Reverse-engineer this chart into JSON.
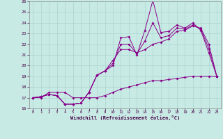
{
  "xlabel": "Windchill (Refroidissement éolien,°C)",
  "background_color": "#c8eae5",
  "grid_color": "#aad4cf",
  "line_color": "#880088",
  "xlim": [
    -0.5,
    23.5
  ],
  "ylim": [
    16,
    26
  ],
  "xticks": [
    0,
    1,
    2,
    3,
    4,
    5,
    6,
    7,
    8,
    9,
    10,
    11,
    12,
    13,
    14,
    15,
    16,
    17,
    18,
    19,
    20,
    21,
    22,
    23
  ],
  "yticks": [
    16,
    17,
    18,
    19,
    20,
    21,
    22,
    23,
    24,
    25,
    26
  ],
  "series1_x": [
    0,
    1,
    2,
    3,
    4,
    5,
    6,
    7,
    8,
    9,
    10,
    11,
    12,
    13,
    14,
    15,
    16,
    17,
    18,
    19,
    20,
    21,
    22,
    23
  ],
  "series1_y": [
    17.0,
    17.1,
    17.3,
    17.2,
    16.4,
    16.4,
    16.5,
    17.5,
    19.1,
    19.5,
    20.0,
    22.6,
    22.7,
    21.0,
    23.3,
    26.1,
    23.1,
    23.2,
    23.8,
    23.5,
    24.0,
    23.3,
    21.2,
    19.0
  ],
  "series2_x": [
    0,
    1,
    2,
    3,
    4,
    5,
    6,
    7,
    8,
    9,
    10,
    11,
    12,
    13,
    14,
    15,
    16,
    17,
    18,
    19,
    20,
    21,
    22,
    23
  ],
  "series2_y": [
    17.0,
    17.1,
    17.3,
    17.2,
    16.4,
    16.4,
    16.5,
    17.5,
    19.1,
    19.5,
    20.5,
    21.5,
    21.5,
    21.2,
    21.5,
    22.0,
    22.2,
    22.5,
    23.2,
    23.3,
    23.7,
    23.5,
    22.0,
    19.0
  ],
  "series3_x": [
    0,
    1,
    2,
    3,
    4,
    5,
    6,
    7,
    8,
    9,
    10,
    11,
    12,
    13,
    14,
    15,
    16,
    17,
    18,
    19,
    20,
    21,
    22,
    23
  ],
  "series3_y": [
    17.0,
    17.0,
    17.5,
    17.5,
    17.5,
    17.0,
    17.0,
    17.0,
    17.0,
    17.2,
    17.5,
    17.8,
    18.0,
    18.2,
    18.4,
    18.6,
    18.6,
    18.7,
    18.8,
    18.9,
    19.0,
    19.0,
    19.0,
    19.0
  ],
  "series4_x": [
    0,
    1,
    2,
    3,
    4,
    5,
    6,
    7,
    8,
    9,
    10,
    11,
    12,
    13,
    14,
    15,
    16,
    17,
    18,
    19,
    20,
    21,
    22,
    23
  ],
  "series4_y": [
    17.0,
    17.1,
    17.3,
    17.2,
    16.4,
    16.4,
    16.5,
    17.5,
    19.1,
    19.5,
    20.2,
    22.0,
    22.0,
    21.1,
    22.3,
    24.0,
    22.6,
    22.8,
    23.5,
    23.4,
    23.8,
    23.4,
    21.6,
    19.0
  ]
}
